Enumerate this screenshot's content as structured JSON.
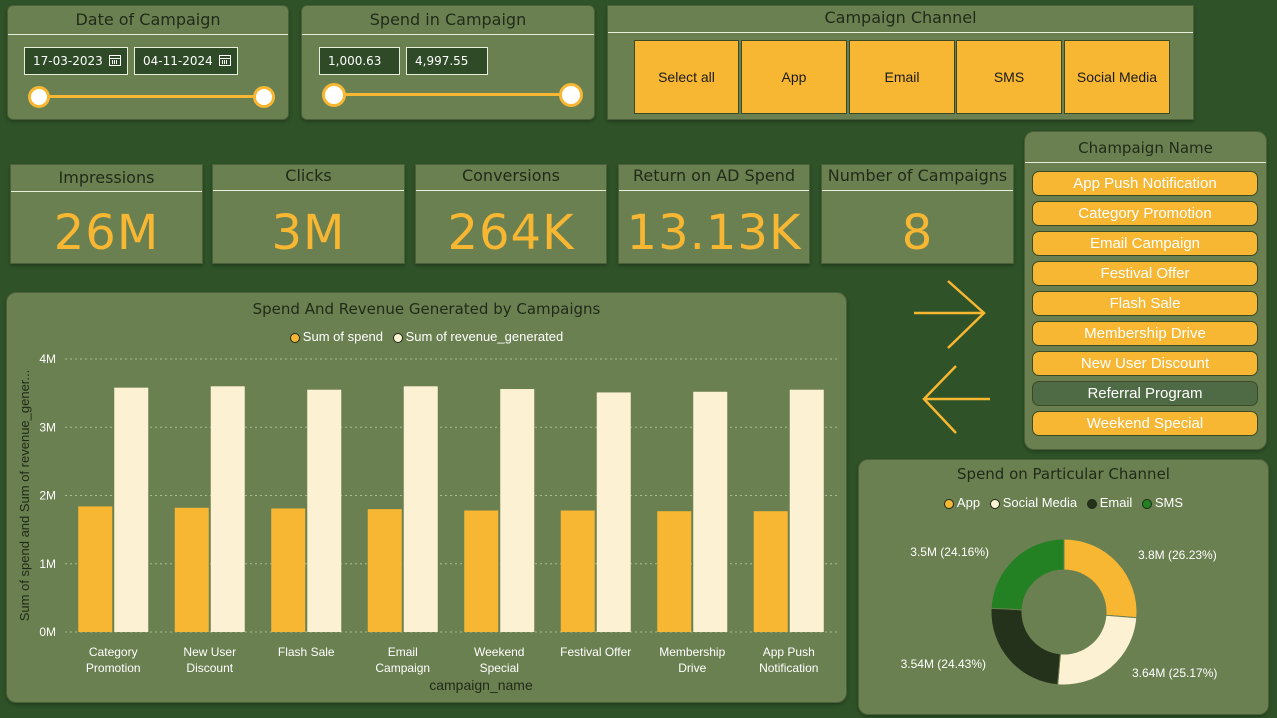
{
  "date_filter": {
    "title": "Date of Campaign",
    "start": "17-03-2023",
    "end": "04-11-2024"
  },
  "spend_filter": {
    "title": "Spend in Campaign",
    "min": "1,000.63",
    "max": "4,997.55"
  },
  "channel_filter": {
    "title": "Campaign Channel",
    "buttons": [
      "Select all",
      "App",
      "Email",
      "SMS",
      "Social Media"
    ]
  },
  "kpis": [
    {
      "label": "Impressions",
      "value": "26M"
    },
    {
      "label": "Clicks",
      "value": "3M"
    },
    {
      "label": "Conversions",
      "value": "264K"
    },
    {
      "label": "Return on AD Spend",
      "value": "13.13K"
    },
    {
      "label": "Number of Campaigns",
      "value": "8"
    }
  ],
  "campaign_names": {
    "title": "Champaign Name",
    "items": [
      {
        "label": "App Push Notification",
        "selected": true
      },
      {
        "label": "Category Promotion",
        "selected": true
      },
      {
        "label": "Email Campaign",
        "selected": true
      },
      {
        "label": "Festival Offer",
        "selected": true
      },
      {
        "label": "Flash Sale",
        "selected": true
      },
      {
        "label": "Membership Drive",
        "selected": true
      },
      {
        "label": "New User Discount",
        "selected": true
      },
      {
        "label": "Referral Program",
        "selected": false
      },
      {
        "label": "Weekend Special",
        "selected": true
      }
    ]
  },
  "colors": {
    "accent": "#f7b733",
    "cream": "#fdf1d4",
    "panel": "#6b8051",
    "background": "#2f5228",
    "email": "#24321c",
    "sms": "#238023"
  },
  "icons": [
    "calendar-icon",
    "arrow-right-icon",
    "arrow-left-icon"
  ],
  "chart_data": [
    {
      "type": "bar",
      "title": "Spend And Revenue Generated by Campaigns",
      "xlabel": "campaign_name",
      "ylabel": "Sum of spend and Sum of revenue_gener...",
      "categories": [
        "Category Promotion",
        "New User Discount",
        "Flash Sale",
        "Email Campaign",
        "Weekend Special",
        "Festival Offer",
        "Membership Drive",
        "App Push Notification"
      ],
      "ylim": [
        0,
        4000000
      ],
      "yticks": [
        {
          "value": 0,
          "label": "0M"
        },
        {
          "value": 1000000,
          "label": "1M"
        },
        {
          "value": 2000000,
          "label": "2M"
        },
        {
          "value": 3000000,
          "label": "3M"
        },
        {
          "value": 4000000,
          "label": "4M"
        }
      ],
      "grid": true,
      "legend": "top-center",
      "series": [
        {
          "name": "Sum of spend",
          "color": "#f7b733",
          "values": [
            1840000,
            1820000,
            1810000,
            1800000,
            1780000,
            1780000,
            1770000,
            1770000
          ]
        },
        {
          "name": "Sum of revenue_generated",
          "color": "#fdf1d4",
          "values": [
            3580000,
            3600000,
            3550000,
            3600000,
            3560000,
            3510000,
            3520000,
            3550000
          ]
        }
      ]
    },
    {
      "type": "pie",
      "donut": true,
      "title": "Spend on Particular Channel",
      "legend": "top-center",
      "slices": [
        {
          "name": "App",
          "value": 3800000,
          "percent": 26.23,
          "label": "3.8M (26.23%)",
          "color": "#f7b733"
        },
        {
          "name": "Social Media",
          "value": 3640000,
          "percent": 25.17,
          "label": "3.64M (25.17%)",
          "color": "#fdf1d4"
        },
        {
          "name": "Email",
          "value": 3540000,
          "percent": 24.43,
          "label": "3.54M (24.43%)",
          "color": "#24321c"
        },
        {
          "name": "SMS",
          "value": 3500000,
          "percent": 24.16,
          "label": "3.5M (24.16%)",
          "color": "#238023"
        }
      ]
    }
  ]
}
